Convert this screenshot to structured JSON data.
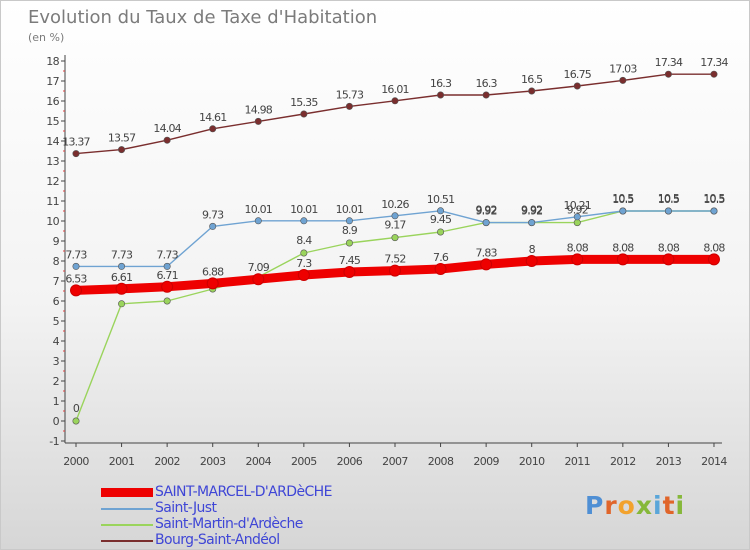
{
  "title": "Evolution du Taux de Taxe d'Habitation",
  "unit": "(en %)",
  "logo": {
    "text": "Proxiti",
    "letter_colors": [
      "#4f8fd4",
      "#e0652a",
      "#f2a22d",
      "#86b83a",
      "#5aa6d9",
      "#e0652a",
      "#86b83a"
    ]
  },
  "chart_data": {
    "type": "line",
    "title": "Evolution du Taux de Taxe d'Habitation",
    "ylabel": "(en %)",
    "ylim": [
      -1,
      18
    ],
    "yticks": [
      "-1",
      "0",
      "1",
      "2",
      "3",
      "4",
      "5",
      "6",
      "7",
      "8",
      "9",
      "10",
      "11",
      "12",
      "13",
      "14",
      "15",
      "16",
      "17",
      "18"
    ],
    "categories": [
      "2000",
      "2001",
      "2002",
      "2003",
      "2004",
      "2005",
      "2006",
      "2007",
      "2008",
      "2009",
      "2010",
      "2011",
      "2012",
      "2013",
      "2014"
    ],
    "legend_position": "bottom-left",
    "series": [
      {
        "name": "SAINT-MARCEL-D'ARDèCHE",
        "color": "#ee0000",
        "values": [
          6.53,
          6.61,
          6.71,
          6.88,
          7.09,
          7.3,
          7.45,
          7.52,
          7.6,
          7.83,
          8,
          8.08,
          8.08,
          8.08,
          8.08
        ],
        "labels": [
          "6.53",
          "6.61",
          "6.71",
          "6.88",
          "7.09",
          "7.3",
          "7.45",
          "7.52",
          "7.6",
          "7.83",
          "8",
          "8.08",
          "8.08",
          "8.08",
          "8.08"
        ]
      },
      {
        "name": "Saint-Just",
        "color": "#6fa3d2",
        "values": [
          7.73,
          7.73,
          7.73,
          9.73,
          10.01,
          10.01,
          10.01,
          10.26,
          10.51,
          9.92,
          9.92,
          10.21,
          10.5,
          10.5,
          10.5
        ],
        "labels": [
          "7.73",
          "7.73",
          "7.73",
          "9.73",
          "10.01",
          "10.01",
          "10.01",
          "10.26",
          "10.51",
          "9.92",
          "9.92",
          "10.21",
          "10.5",
          "10.5",
          "10.5"
        ]
      },
      {
        "name": "Saint-Martin-d'Ardèche",
        "color": "#9ad45c",
        "values": [
          0,
          5.86,
          6,
          6.6,
          7.2,
          8.4,
          8.9,
          9.17,
          9.45,
          9.92,
          9.92,
          9.92,
          10.5,
          10.5,
          10.5
        ],
        "labels": [
          "0",
          "",
          "",
          "",
          "",
          "8.4",
          "8.9",
          "9.17",
          "9.45",
          "9.92",
          "9.92",
          "9.92",
          "10.5",
          "10.5",
          "10.5"
        ]
      },
      {
        "name": "Bourg-Saint-Andéol",
        "color": "#7a2e2e",
        "values": [
          13.37,
          13.57,
          14.04,
          14.61,
          14.98,
          15.35,
          15.73,
          16.01,
          16.3,
          16.3,
          16.5,
          16.75,
          17.03,
          17.34,
          17.34
        ],
        "labels": [
          "13.37",
          "13.57",
          "14.04",
          "14.61",
          "14.98",
          "15.35",
          "15.73",
          "16.01",
          "16.3",
          "16.3",
          "16.5",
          "16.75",
          "17.03",
          "17.34",
          "17.34"
        ]
      }
    ]
  }
}
